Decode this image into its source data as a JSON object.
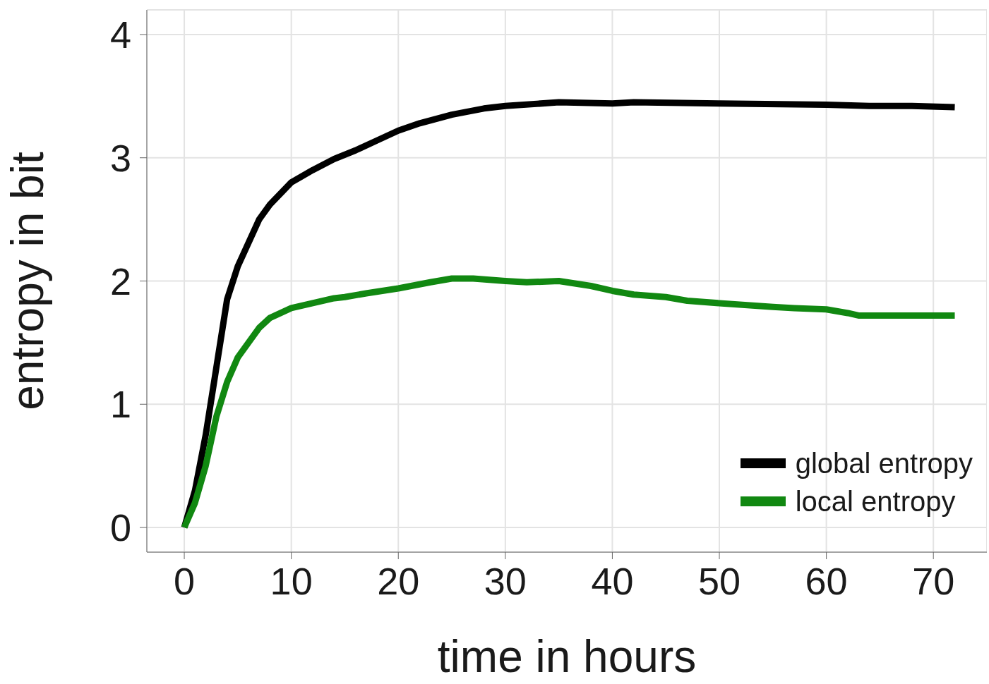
{
  "chart_data": {
    "type": "line",
    "xlabel": "time in hours",
    "ylabel": "entropy in bit",
    "xlim": [
      -3.5,
      75
    ],
    "xticks": [
      0,
      10,
      20,
      30,
      40,
      50,
      60,
      70
    ],
    "ylim": [
      -0.2,
      4.2
    ],
    "yticks": [
      0,
      1,
      2,
      3,
      4
    ],
    "grid": true,
    "legend": "bottom right",
    "marker": "none",
    "line_style": "solid",
    "series": [
      {
        "name": "global entropy",
        "color": "#000000",
        "x": [
          0,
          1,
          2,
          3,
          4,
          5,
          7,
          8,
          10,
          12,
          14,
          16,
          18,
          20,
          22,
          25,
          28,
          30,
          35,
          40,
          42,
          50,
          60,
          64,
          68,
          72
        ],
        "values": [
          0,
          0.3,
          0.75,
          1.3,
          1.85,
          2.12,
          2.5,
          2.62,
          2.8,
          2.9,
          2.99,
          3.06,
          3.14,
          3.22,
          3.28,
          3.35,
          3.4,
          3.42,
          3.45,
          3.44,
          3.45,
          3.44,
          3.43,
          3.42,
          3.42,
          3.41
        ]
      },
      {
        "name": "local entropy",
        "color": "#118811",
        "x": [
          0,
          1,
          2,
          3,
          4,
          5,
          6,
          7,
          8,
          10,
          12,
          14,
          15,
          17,
          20,
          23,
          25,
          27,
          30,
          32,
          35,
          38,
          40,
          42,
          45,
          47,
          50,
          55,
          57,
          60,
          62,
          63,
          66,
          68,
          72
        ],
        "values": [
          0,
          0.2,
          0.5,
          0.9,
          1.18,
          1.38,
          1.5,
          1.62,
          1.7,
          1.78,
          1.82,
          1.86,
          1.87,
          1.9,
          1.94,
          1.99,
          2.02,
          2.02,
          2,
          1.99,
          2,
          1.96,
          1.92,
          1.89,
          1.87,
          1.84,
          1.82,
          1.79,
          1.78,
          1.77,
          1.74,
          1.72,
          1.72,
          1.72,
          1.72
        ]
      }
    ]
  }
}
